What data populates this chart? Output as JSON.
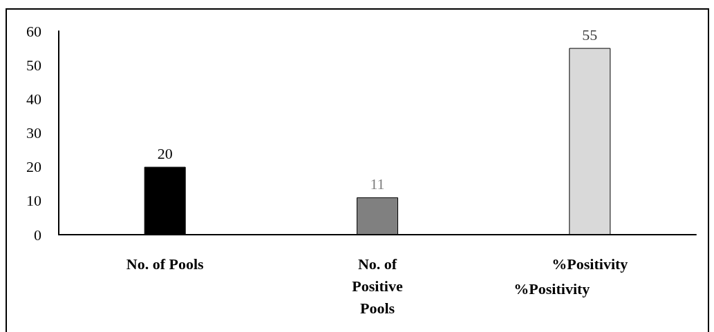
{
  "chart_data": {
    "type": "bar",
    "categories": [
      "No. of Pools",
      "No. of\nPositive\nPools",
      "%Positivity"
    ],
    "values": [
      20,
      11,
      55
    ],
    "colors": [
      "#000000",
      "#808080",
      "#d9d9d9"
    ],
    "ylim": [
      0,
      60
    ],
    "yticks": [
      0,
      10,
      20,
      30,
      40,
      50,
      60
    ],
    "grid": false,
    "data_labels": true,
    "annotations": [
      "%Positivity"
    ]
  }
}
